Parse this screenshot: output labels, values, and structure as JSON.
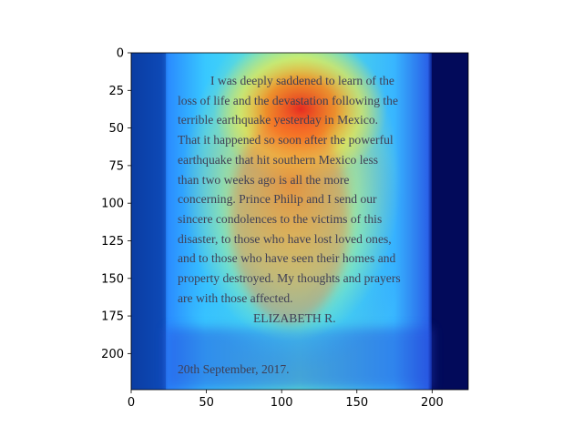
{
  "chart_data": {
    "type": "heatmap",
    "title": "",
    "xlabel": "",
    "ylabel": "",
    "xlim": [
      0,
      224
    ],
    "ylim": [
      224,
      0
    ],
    "x_ticks": [
      0,
      50,
      100,
      150,
      200
    ],
    "y_ticks": [
      0,
      25,
      50,
      75,
      100,
      125,
      150,
      175,
      200
    ],
    "colormap": "jet",
    "image_text": {
      "lines": [
        "I was deeply saddened to learn of the",
        "loss of life and the devastation following the",
        "terrible earthquake yesterday in Mexico.",
        "That it happened so soon after the powerful",
        "earthquake that hit southern Mexico less",
        "than two weeks ago is all the more",
        "concerning. Prince Philip and I send our",
        "sincere condolences to the victims of this",
        "disaster, to those who have lost loved ones,",
        "and to those who have seen their homes and",
        "property destroyed. My thoughts and prayers",
        "are with those affected."
      ],
      "signature": "ELIZABETH R.",
      "date": "20th September, 2017."
    }
  }
}
